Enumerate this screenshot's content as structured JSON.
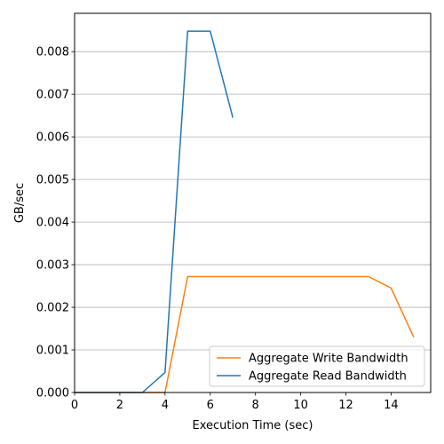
{
  "chart_data": {
    "type": "line",
    "title": "",
    "xlabel": "Execution Time (sec)",
    "ylabel": "GB/sec",
    "xlim": [
      0,
      15.75
    ],
    "ylim": [
      0,
      0.0089
    ],
    "xticks": [
      0,
      2,
      4,
      6,
      8,
      10,
      12,
      14
    ],
    "xtick_labels": [
      "0",
      "2",
      "4",
      "6",
      "8",
      "10",
      "12",
      "14"
    ],
    "yticks": [
      0,
      0.001,
      0.002,
      0.003,
      0.004,
      0.005,
      0.006,
      0.007,
      0.008
    ],
    "ytick_labels": [
      "0.000",
      "0.001",
      "0.002",
      "0.003",
      "0.004",
      "0.005",
      "0.006",
      "0.007",
      "0.008"
    ],
    "grid": "horizontal",
    "legend_position": "lower-right",
    "series": [
      {
        "name": "Aggregate Write Bandwidth",
        "color": "#ff7f0e",
        "x": [
          0,
          1,
          2,
          3,
          4,
          5,
          6,
          7,
          8,
          9,
          10,
          11,
          12,
          13,
          14,
          15
        ],
        "y": [
          0,
          0,
          0,
          0,
          0,
          0.00272,
          0.00272,
          0.00272,
          0.00272,
          0.00272,
          0.00272,
          0.00272,
          0.00272,
          0.00272,
          0.00245,
          0.0013
        ]
      },
      {
        "name": "Aggregate Read Bandwidth",
        "color": "#1f77b4",
        "x": [
          0,
          1,
          2,
          3,
          4,
          5,
          6,
          7
        ],
        "y": [
          0,
          0,
          0,
          0,
          0.00047,
          0.00848,
          0.00848,
          0.00645
        ]
      }
    ]
  }
}
